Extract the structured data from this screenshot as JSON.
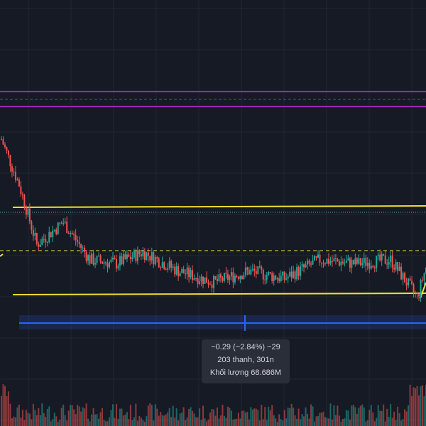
{
  "colors": {
    "background": "#161a25",
    "grid": "#232734",
    "up": "#26a69a",
    "down": "#ef5350",
    "purple_band": "#9c27b0",
    "yellow_line": "#f0e030",
    "blue_range": "#2962ff",
    "teal_dotted": "#4db6ac"
  },
  "measure_tooltip": {
    "change": "−0.29 (−2.84%) −29",
    "bars": "203 thanh, 301n",
    "volume": "Khối lượng 68.686M"
  },
  "chart_data": {
    "type": "candlestick",
    "note_levels": [
      "resistance",
      "support",
      "mid"
    ],
    "price_path": [
      {
        "bar": 0,
        "price": 10.6
      },
      {
        "bar": 10,
        "price": 10.0
      },
      {
        "bar": 20,
        "price": 9.2
      },
      {
        "bar": 35,
        "price": 9.5
      },
      {
        "bar": 50,
        "price": 9.0
      },
      {
        "bar": 65,
        "price": 8.95
      },
      {
        "bar": 80,
        "price": 9.1
      },
      {
        "bar": 100,
        "price": 8.85
      },
      {
        "bar": 120,
        "price": 8.7
      },
      {
        "bar": 140,
        "price": 8.85
      },
      {
        "bar": 160,
        "price": 8.75
      },
      {
        "bar": 180,
        "price": 9.0
      },
      {
        "bar": 200,
        "price": 8.95
      },
      {
        "bar": 220,
        "price": 9.0
      },
      {
        "bar": 235,
        "price": 8.5
      },
      {
        "bar": 240,
        "price": 8.9
      }
    ]
  }
}
